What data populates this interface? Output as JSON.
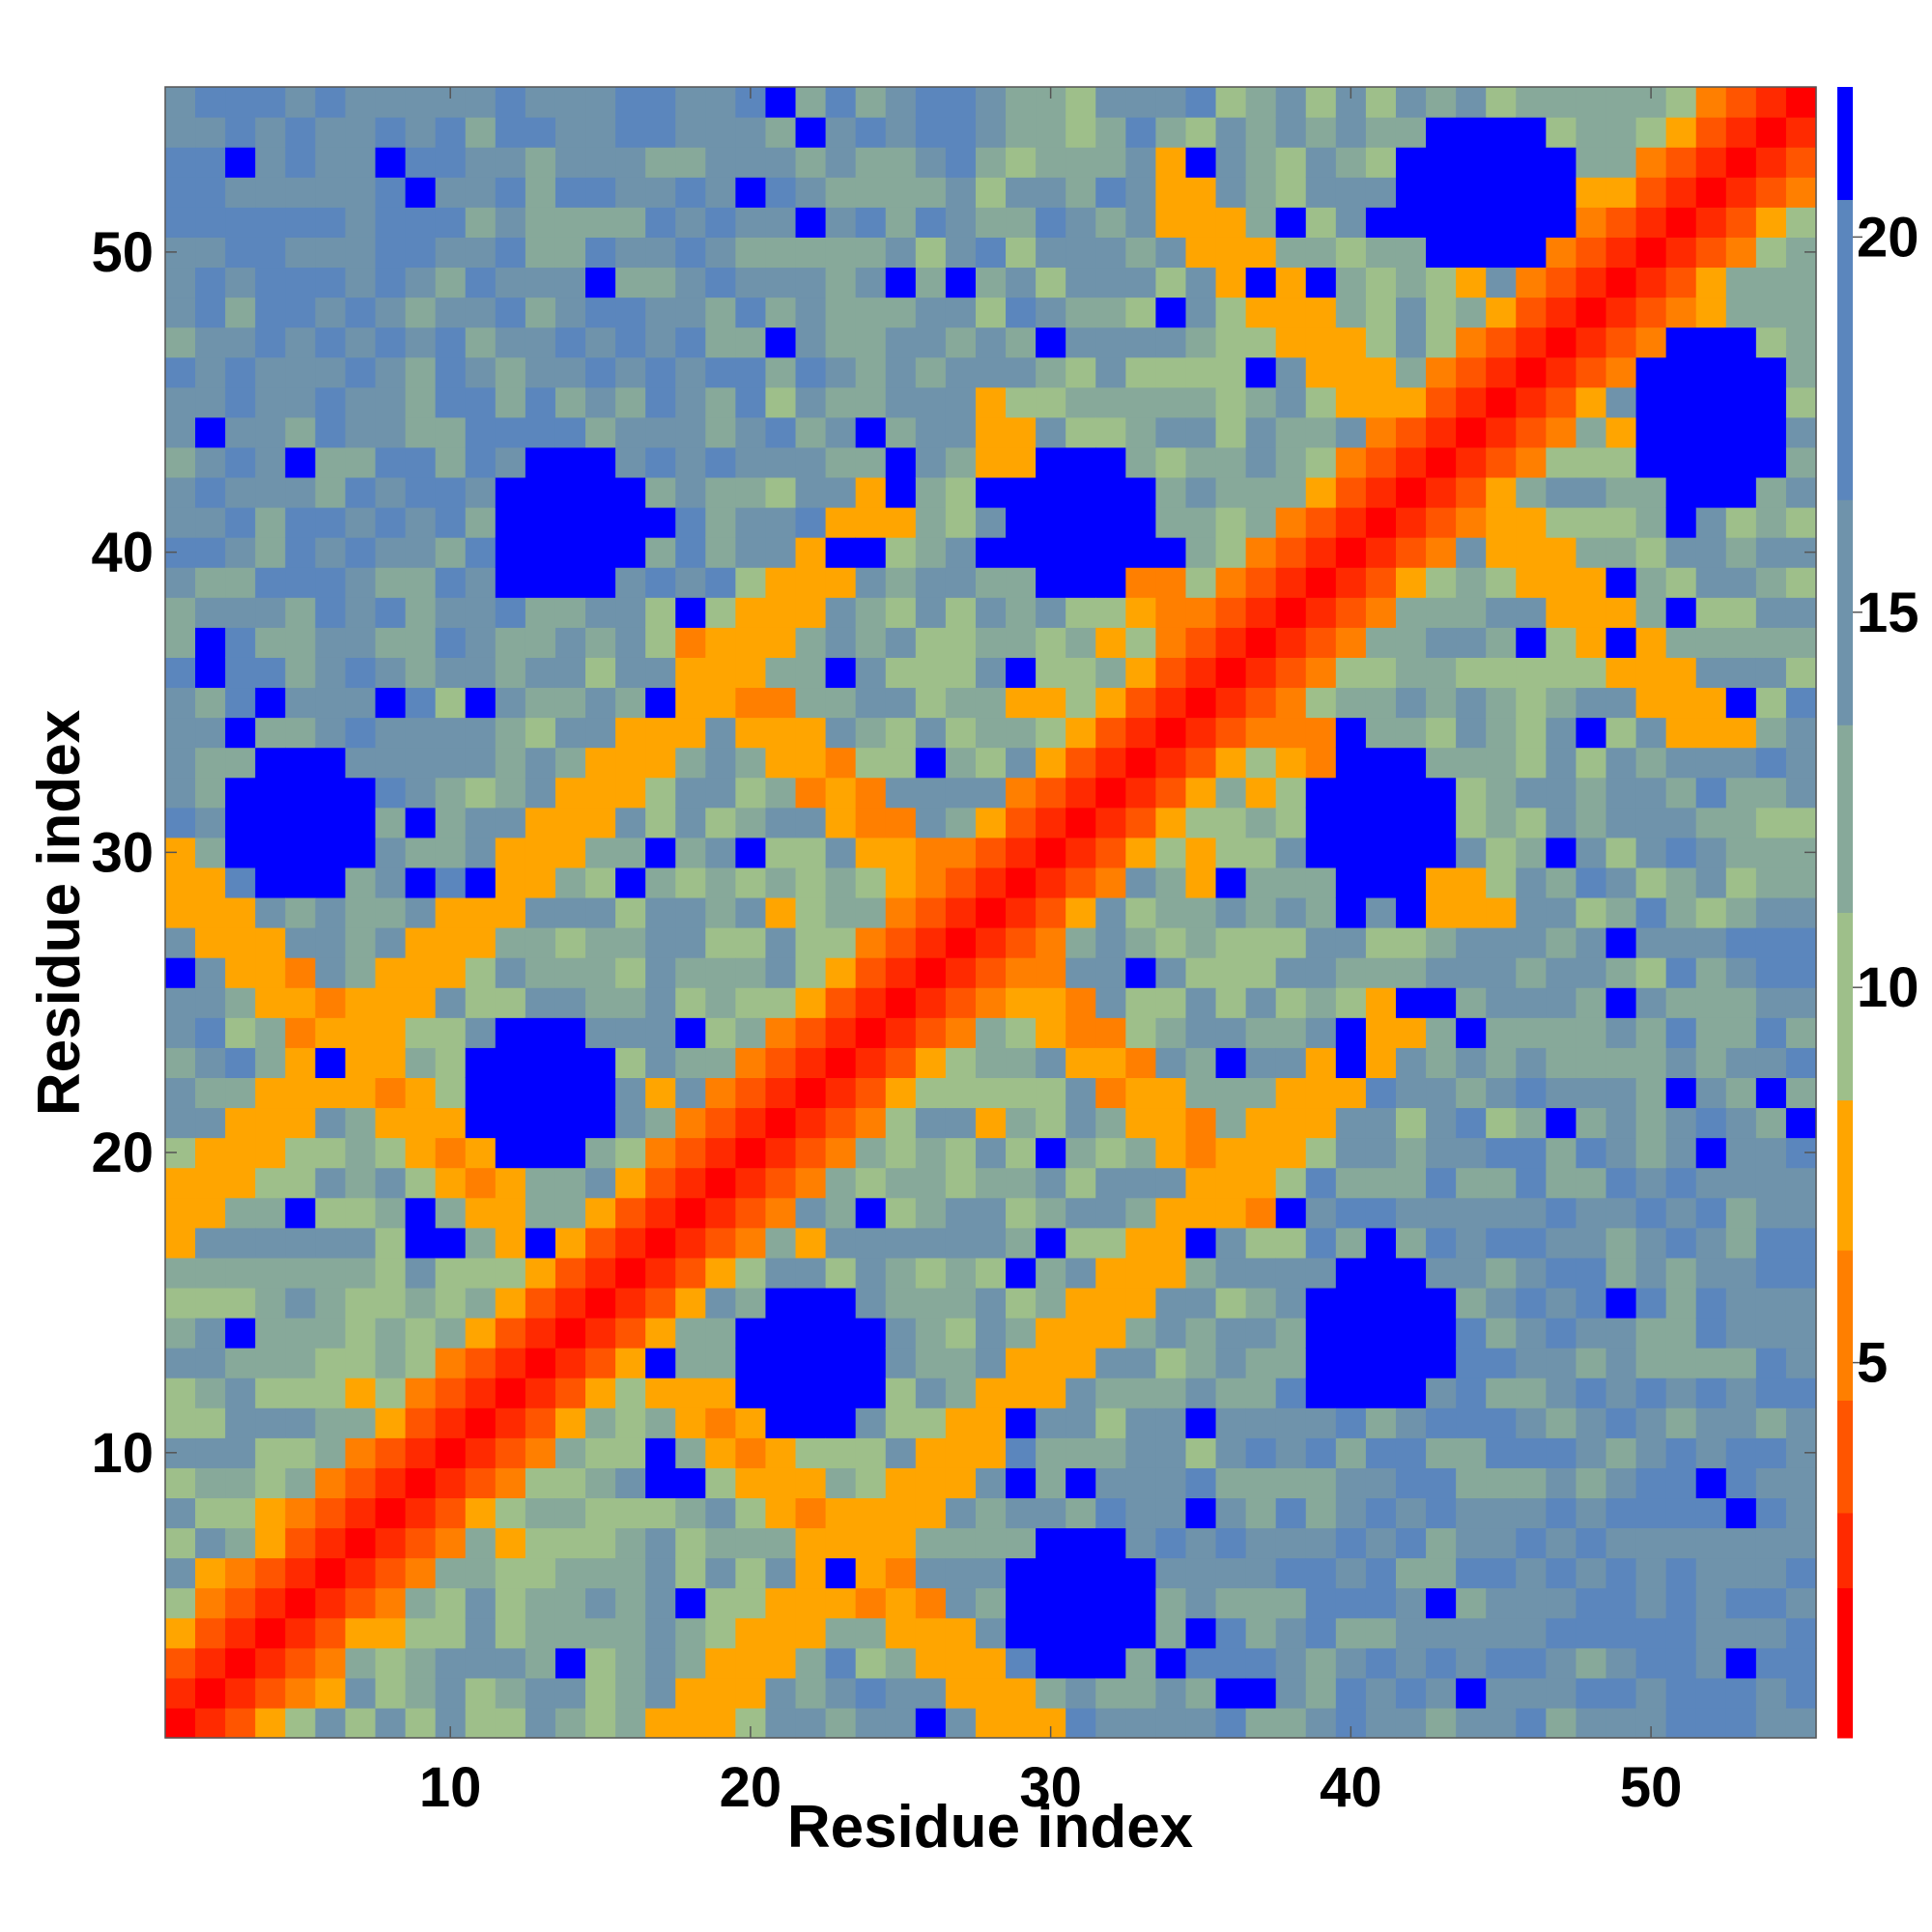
{
  "chart_data": {
    "type": "heatmap",
    "title": "",
    "xlabel": "Residue index",
    "ylabel": "Residue index",
    "n": 55,
    "xlim": [
      0.5,
      55.5
    ],
    "ylim": [
      0.5,
      55.5
    ],
    "x_ticks": [
      10,
      20,
      30,
      40,
      50
    ],
    "y_ticks": [
      10,
      20,
      30,
      40,
      50
    ],
    "x_tick_labels": [
      "10",
      "20",
      "30",
      "40",
      "50"
    ],
    "y_tick_labels": [
      "10",
      "20",
      "30",
      "40",
      "50"
    ],
    "colorbar": {
      "ticks": [
        5,
        10,
        15,
        20
      ],
      "labels": [
        "5",
        "10",
        "15",
        "20"
      ],
      "range": [
        0,
        22
      ],
      "colors": [
        "#ff0000",
        "#ff2a00",
        "#ff5500",
        "#ff7f00",
        "#ffa500",
        "#9ebf8a",
        "#87a99a",
        "#6f93ab",
        "#5b86bd",
        "#0000ff"
      ]
    },
    "values_description": "Pairwise residue distance matrix (symmetric); diagonal band near 0, long-range contacts at intermediate values, cut-off above 20."
  }
}
